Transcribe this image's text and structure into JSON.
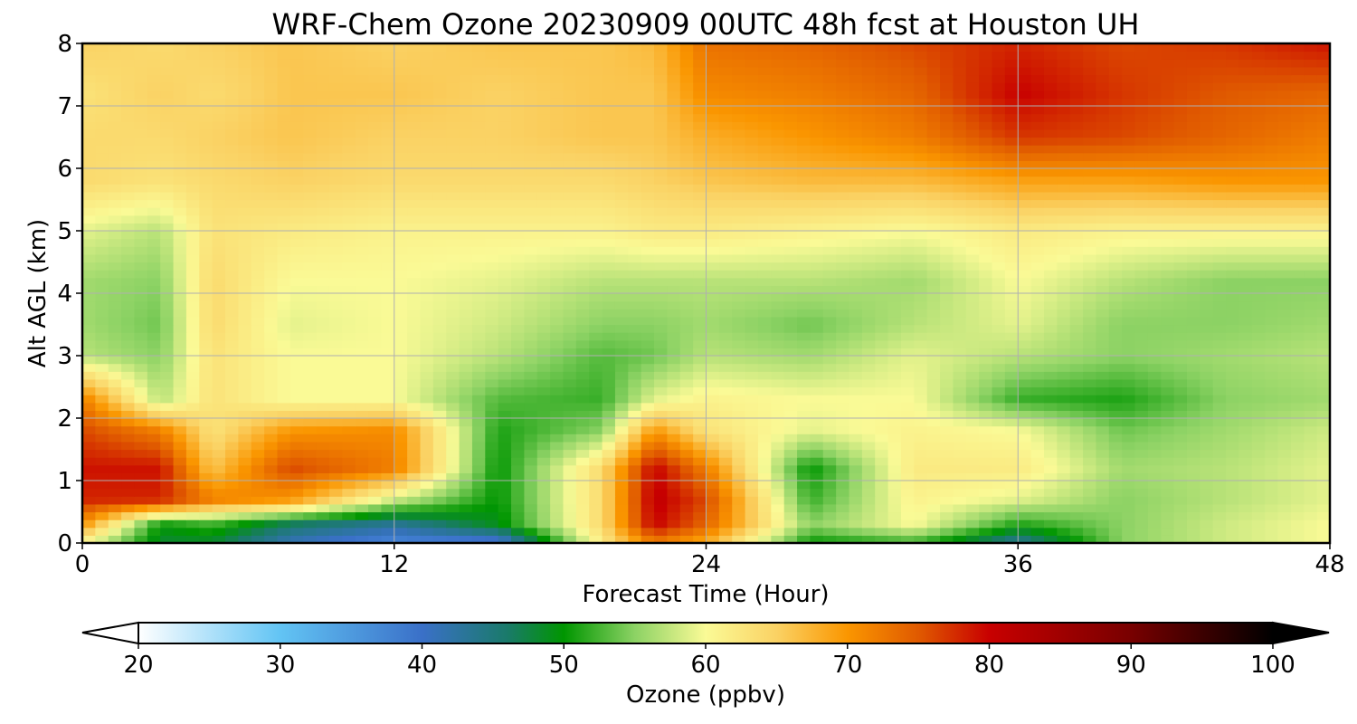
{
  "chart_data": {
    "type": "heatmap",
    "title": "WRF-Chem Ozone  20230909 00UTC 48h fcst at Houston UH",
    "xlabel": "Forecast Time (Hour)",
    "ylabel": "Alt AGL (km)",
    "xlim": [
      0,
      48
    ],
    "ylim": [
      0,
      8
    ],
    "x_ticks": [
      0,
      12,
      24,
      36,
      48
    ],
    "y_ticks": [
      0,
      1,
      2,
      3,
      4,
      5,
      6,
      7,
      8
    ],
    "grid": true,
    "colorbar": {
      "label": "Ozone  (ppbv)",
      "min": 20,
      "max": 100,
      "ticks": [
        20,
        30,
        40,
        50,
        60,
        70,
        80,
        90,
        100
      ],
      "extend": "both",
      "stops": [
        {
          "value": 20,
          "color": "#ffffff"
        },
        {
          "value": 30,
          "color": "#62c4f4"
        },
        {
          "value": 40,
          "color": "#3a70c8"
        },
        {
          "value": 46,
          "color": "#1a7a6a"
        },
        {
          "value": 50,
          "color": "#009600"
        },
        {
          "value": 55,
          "color": "#8cd264"
        },
        {
          "value": 60,
          "color": "#fafa96"
        },
        {
          "value": 65,
          "color": "#fad264"
        },
        {
          "value": 70,
          "color": "#fa9600"
        },
        {
          "value": 75,
          "color": "#e05a00"
        },
        {
          "value": 80,
          "color": "#c80000"
        },
        {
          "value": 90,
          "color": "#780000"
        },
        {
          "value": 100,
          "color": "#000000"
        }
      ]
    },
    "x": [
      0,
      3,
      5,
      8,
      12,
      16,
      20,
      22,
      24,
      28,
      32,
      36,
      40,
      44,
      48
    ],
    "y": [
      0,
      0.3,
      0.7,
      1.2,
      1.8,
      2.3,
      3,
      3.5,
      4.2,
      5,
      5.8,
      6.5,
      7.2,
      8
    ],
    "z": [
      [
        60,
        48,
        48,
        41,
        37,
        38,
        62,
        72,
        68,
        50,
        52,
        43,
        55,
        58,
        60
      ],
      [
        70,
        50,
        52,
        46,
        43,
        49,
        64,
        80,
        74,
        55,
        60,
        51,
        55,
        58,
        60
      ],
      [
        78,
        78,
        72,
        70,
        58,
        50,
        64,
        81,
        76,
        52,
        61,
        59,
        55,
        57,
        59
      ],
      [
        79,
        79,
        66,
        76,
        72,
        50,
        64,
        80,
        72,
        50,
        62,
        62,
        56,
        57,
        59
      ],
      [
        76,
        72,
        63,
        70,
        71,
        51,
        55,
        70,
        63,
        59,
        61,
        60,
        54,
        56,
        58
      ],
      [
        72,
        57,
        63,
        60,
        60,
        53,
        52,
        59,
        61,
        60,
        60,
        52,
        51,
        55,
        56
      ],
      [
        57,
        55,
        63,
        60,
        60,
        57,
        53,
        54,
        57,
        56,
        59,
        57,
        55,
        56,
        57
      ],
      [
        56,
        54,
        64,
        59,
        60,
        58,
        55,
        55,
        56,
        54,
        57,
        59,
        55,
        55,
        56
      ],
      [
        56,
        55,
        64,
        60,
        60,
        59,
        57,
        57,
        57,
        57,
        56,
        60,
        57,
        55,
        55
      ],
      [
        59,
        57,
        63,
        62,
        61,
        61,
        61,
        62,
        62,
        61,
        60,
        62,
        61,
        61,
        61
      ],
      [
        64,
        63,
        64,
        65,
        64,
        64,
        64,
        65,
        66,
        67,
        67,
        69,
        69,
        70,
        70
      ],
      [
        64,
        64,
        65,
        66,
        65,
        65,
        66,
        66,
        68,
        70,
        72,
        77,
        76,
        74,
        72
      ],
      [
        63,
        65,
        64,
        66,
        66,
        65,
        66,
        66,
        71,
        72,
        74,
        80,
        77,
        75,
        74
      ],
      [
        65,
        64,
        65,
        66,
        65,
        66,
        66,
        67,
        73,
        74,
        76,
        78,
        76,
        77,
        79
      ]
    ]
  }
}
